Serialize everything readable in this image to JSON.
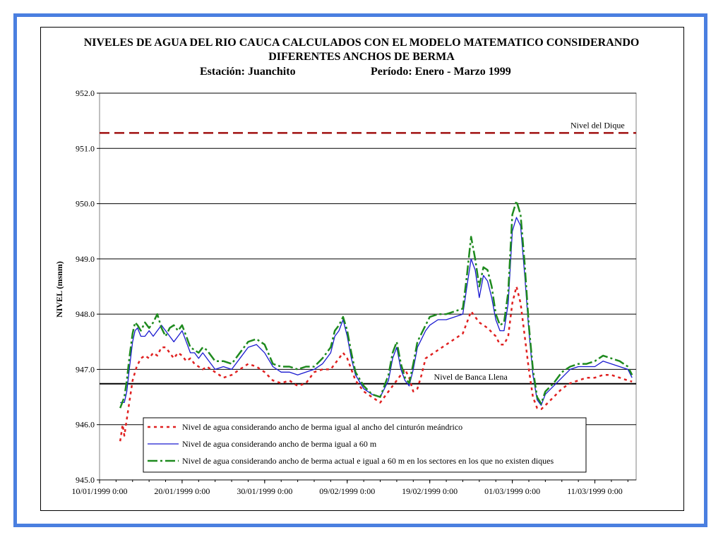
{
  "chart_data": {
    "type": "line",
    "title": "NIVELES DE AGUA DEL RIO CAUCA CALCULADOS CON EL MODELO MATEMATICO CONSIDERANDO",
    "title_line2": "DIFERENTES ANCHOS DE BERMA",
    "subtitle_station": "Estación: Juanchito",
    "subtitle_period": "Período: Enero - Marzo 1999",
    "ylabel": "NIVEL (msnm)",
    "xlabel": "",
    "ylim": [
      945.0,
      952.0
    ],
    "y_ticks": [
      "945.0",
      "946.0",
      "947.0",
      "948.0",
      "949.0",
      "950.0",
      "951.0",
      "952.0"
    ],
    "x_range_days": [
      0,
      65
    ],
    "x_ticks": [
      {
        "day": 0,
        "label": "10/01/1999 0:00"
      },
      {
        "day": 10,
        "label": "20/01/1999 0:00"
      },
      {
        "day": 20,
        "label": "30/01/1999 0:00"
      },
      {
        "day": 30,
        "label": "09/02/1999 0:00"
      },
      {
        "day": 40,
        "label": "19/02/1999 0:00"
      },
      {
        "day": 50,
        "label": "01/03/1999 0:00"
      },
      {
        "day": 60,
        "label": "11/03/1999 0:00"
      }
    ],
    "grid": "horizontal",
    "reference_lines": [
      {
        "name": "Nivel del Dique",
        "y": 951.28,
        "color": "#a01010"
      },
      {
        "name": "Nivel de Banca Llena",
        "y": 946.74,
        "color": "#000000"
      }
    ],
    "series": [
      {
        "name": "Nivel de agua considerando ancho de berma igual al ancho del cinturón meándrico",
        "color": "#e02020",
        "dash": "4,5",
        "x": [
          2.5,
          2.8,
          3.0,
          3.3,
          3.6,
          4.0,
          4.5,
          5.0,
          5.5,
          6.0,
          6.5,
          7.0,
          7.5,
          8.0,
          8.5,
          9.0,
          9.5,
          10.0,
          10.5,
          11.0,
          11.5,
          12.0,
          12.5,
          13.0,
          13.5,
          14.0,
          15.0,
          16.0,
          17.0,
          18.0,
          19.0,
          20.0,
          21.0,
          22.0,
          23.0,
          24.0,
          25.0,
          26.0,
          27.0,
          28.0,
          29.0,
          29.5,
          30.0,
          30.5,
          31.0,
          32.0,
          33.0,
          34.0,
          35.0,
          36.0,
          37.0,
          37.5,
          38.0,
          38.5,
          39.0,
          39.5,
          40.0,
          41.0,
          42.0,
          43.0,
          44.0,
          45.0,
          46.0,
          47.0,
          48.0,
          48.5,
          49.0,
          49.5,
          50.0,
          50.5,
          51.0,
          51.5,
          52.0,
          52.5,
          53.0,
          53.5,
          54.0,
          55.0,
          56.0,
          57.0,
          58.0,
          59.0,
          60.0,
          61.0,
          62.0,
          63.0,
          64.0,
          64.5
        ],
        "y": [
          945.7,
          946.0,
          945.8,
          946.1,
          946.4,
          946.8,
          947.05,
          947.2,
          947.25,
          947.2,
          947.3,
          947.25,
          947.4,
          947.4,
          947.3,
          947.2,
          947.3,
          947.25,
          947.15,
          947.2,
          947.1,
          947.05,
          947.0,
          947.05,
          947.0,
          946.95,
          946.85,
          946.9,
          947.0,
          947.1,
          947.05,
          946.95,
          946.8,
          946.75,
          946.8,
          946.7,
          946.75,
          946.95,
          947.0,
          947.0,
          947.2,
          947.3,
          947.2,
          947.0,
          946.8,
          946.6,
          946.5,
          946.4,
          946.6,
          946.8,
          947.0,
          946.85,
          946.6,
          946.65,
          946.9,
          947.2,
          947.25,
          947.35,
          947.45,
          947.55,
          947.65,
          948.05,
          947.85,
          947.75,
          947.6,
          947.45,
          947.45,
          947.6,
          948.2,
          948.5,
          948.2,
          947.6,
          947.0,
          946.5,
          946.3,
          946.28,
          946.35,
          946.5,
          946.65,
          946.75,
          946.8,
          946.85,
          946.85,
          946.9,
          946.9,
          946.85,
          946.8,
          946.78
        ]
      },
      {
        "name": "Nivel de agua considerando ancho de berma igual a  60 m",
        "color": "#1a1ad0",
        "dash": "",
        "x": [
          2.5,
          3.0,
          3.3,
          3.6,
          4.0,
          4.3,
          4.6,
          5.0,
          5.5,
          6.0,
          6.5,
          7.0,
          7.5,
          8.0,
          8.5,
          9.0,
          9.5,
          10.0,
          10.5,
          11.0,
          11.5,
          12.0,
          12.5,
          13.0,
          14.0,
          15.0,
          16.0,
          17.0,
          18.0,
          19.0,
          20.0,
          21.0,
          22.0,
          23.0,
          24.0,
          25.0,
          26.0,
          27.0,
          28.0,
          28.5,
          29.0,
          29.5,
          30.0,
          30.5,
          31.0,
          32.0,
          33.0,
          34.0,
          35.0,
          35.5,
          36.0,
          36.5,
          37.0,
          37.5,
          38.0,
          38.5,
          39.0,
          39.5,
          40.0,
          41.0,
          42.0,
          43.0,
          44.0,
          44.5,
          45.0,
          45.5,
          46.0,
          46.5,
          47.0,
          47.5,
          48.0,
          48.5,
          49.0,
          49.5,
          50.0,
          50.5,
          51.0,
          51.5,
          52.0,
          52.5,
          53.0,
          53.5,
          54.0,
          55.0,
          56.0,
          57.0,
          58.0,
          59.0,
          60.0,
          61.0,
          62.0,
          63.0,
          64.0,
          64.5
        ],
        "y": [
          946.4,
          946.4,
          946.6,
          947.0,
          947.5,
          947.7,
          947.75,
          947.6,
          947.6,
          947.7,
          947.6,
          947.7,
          947.8,
          947.7,
          947.6,
          947.5,
          947.6,
          947.7,
          947.5,
          947.3,
          947.3,
          947.2,
          947.3,
          947.2,
          947.0,
          947.05,
          947.0,
          947.2,
          947.4,
          947.45,
          947.3,
          947.05,
          946.95,
          946.95,
          946.9,
          946.95,
          947.0,
          947.1,
          947.3,
          947.6,
          947.7,
          947.9,
          947.6,
          947.2,
          946.9,
          946.65,
          946.55,
          946.5,
          946.8,
          947.2,
          947.4,
          947.0,
          946.8,
          946.7,
          947.0,
          947.4,
          947.55,
          947.7,
          947.8,
          947.9,
          947.9,
          947.95,
          948.0,
          948.5,
          949.0,
          948.8,
          948.3,
          948.7,
          948.6,
          948.3,
          947.9,
          947.7,
          947.7,
          948.2,
          949.5,
          949.75,
          949.6,
          948.7,
          947.7,
          946.9,
          946.45,
          946.35,
          946.55,
          946.7,
          946.85,
          947.0,
          947.05,
          947.05,
          947.05,
          947.15,
          947.1,
          947.05,
          947.0,
          946.85
        ]
      },
      {
        "name": "Nivel de agua considerando ancho de berma actual e igual a 60 m en los sectores en los que no existen diques",
        "color": "#1e8a1e",
        "dash": "14,4,3,4",
        "x": [
          2.5,
          3.0,
          3.3,
          3.6,
          4.0,
          4.3,
          4.6,
          5.0,
          5.5,
          6.0,
          6.5,
          7.0,
          7.5,
          8.0,
          8.5,
          9.0,
          9.5,
          10.0,
          10.5,
          11.0,
          11.5,
          12.0,
          12.5,
          13.0,
          14.0,
          15.0,
          16.0,
          17.0,
          18.0,
          19.0,
          20.0,
          21.0,
          22.0,
          23.0,
          24.0,
          25.0,
          26.0,
          27.0,
          28.0,
          28.5,
          29.0,
          29.5,
          30.0,
          30.5,
          31.0,
          32.0,
          33.0,
          34.0,
          35.0,
          35.5,
          36.0,
          36.5,
          37.0,
          37.5,
          38.0,
          38.5,
          39.0,
          39.5,
          40.0,
          41.0,
          42.0,
          43.0,
          44.0,
          44.5,
          45.0,
          45.5,
          46.0,
          46.5,
          47.0,
          47.5,
          48.0,
          48.5,
          49.0,
          49.5,
          50.0,
          50.5,
          51.0,
          51.5,
          52.0,
          52.5,
          53.0,
          53.5,
          54.0,
          55.0,
          56.0,
          57.0,
          58.0,
          59.0,
          60.0,
          61.0,
          62.0,
          63.0,
          64.0,
          64.5
        ],
        "y": [
          946.3,
          946.5,
          946.8,
          947.2,
          947.65,
          947.85,
          947.8,
          947.7,
          947.85,
          947.75,
          947.85,
          948.0,
          947.75,
          947.6,
          947.75,
          947.8,
          947.7,
          947.8,
          947.6,
          947.4,
          947.35,
          947.3,
          947.4,
          947.35,
          947.15,
          947.15,
          947.1,
          947.3,
          947.5,
          947.55,
          947.45,
          947.1,
          947.05,
          947.05,
          947.0,
          947.05,
          947.05,
          947.2,
          947.4,
          947.7,
          947.8,
          947.95,
          947.7,
          947.3,
          946.95,
          946.7,
          946.55,
          946.5,
          946.9,
          947.3,
          947.5,
          947.1,
          946.85,
          946.75,
          947.1,
          947.5,
          947.65,
          947.8,
          947.95,
          948.0,
          948.0,
          948.05,
          948.1,
          948.7,
          949.4,
          949.0,
          948.5,
          948.85,
          948.8,
          948.5,
          948.0,
          947.8,
          947.85,
          948.4,
          949.8,
          950.05,
          949.8,
          948.9,
          947.8,
          947.0,
          946.5,
          946.38,
          946.6,
          946.75,
          946.95,
          947.05,
          947.1,
          947.1,
          947.15,
          947.25,
          947.2,
          947.15,
          947.05,
          946.9
        ]
      }
    ],
    "legend": {
      "position": "bottom",
      "entries": [
        "Nivel de agua considerando ancho de berma igual al ancho del cinturón meándrico",
        "Nivel de agua considerando ancho de berma igual a  60 m",
        "Nivel de agua considerando ancho de berma actual e igual a 60 m en los sectores en los que no existen diques"
      ]
    }
  }
}
